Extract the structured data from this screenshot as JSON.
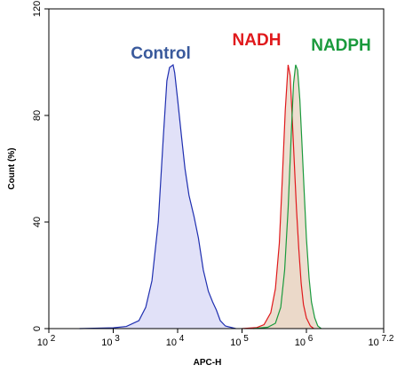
{
  "chart_data": {
    "type": "area",
    "xlabel": "APC-H",
    "ylabel": "Count (%)",
    "x_scale": "log",
    "xlim": [
      100,
      15848932
    ],
    "ylim": [
      0,
      120
    ],
    "x_ticks": [
      {
        "value": 100,
        "base": "10",
        "exp": "2"
      },
      {
        "value": 1000,
        "base": "10",
        "exp": "3"
      },
      {
        "value": 10000,
        "base": "10",
        "exp": "4"
      },
      {
        "value": 100000,
        "base": "10",
        "exp": "5"
      },
      {
        "value": 1000000,
        "base": "10",
        "exp": "6"
      },
      {
        "value": 15848932,
        "base": "10",
        "exp": "7.2"
      }
    ],
    "y_ticks": [
      0,
      40,
      80,
      120
    ],
    "grid": false,
    "series": [
      {
        "name": "Control",
        "color": "#1f2fb0",
        "fill": "#dcdcf7",
        "label_color": "#3a5a9c",
        "points": [
          [
            300,
            0
          ],
          [
            1000,
            0.3
          ],
          [
            1600,
            0.8
          ],
          [
            2500,
            3
          ],
          [
            3200,
            8
          ],
          [
            4000,
            18
          ],
          [
            5000,
            40
          ],
          [
            6000,
            72
          ],
          [
            6800,
            93
          ],
          [
            7500,
            98
          ],
          [
            8500,
            99
          ],
          [
            9000,
            96
          ],
          [
            10000,
            86
          ],
          [
            11500,
            72
          ],
          [
            13000,
            60
          ],
          [
            15000,
            50
          ],
          [
            18000,
            42
          ],
          [
            21000,
            34
          ],
          [
            25000,
            22
          ],
          [
            30000,
            14
          ],
          [
            35000,
            10
          ],
          [
            40000,
            7
          ],
          [
            46000,
            3
          ],
          [
            55000,
            1
          ],
          [
            80000,
            0
          ]
        ]
      },
      {
        "name": "NADH",
        "color": "#e0191c",
        "fill": "#ead8c8",
        "label_color": "#e0191c",
        "points": [
          [
            100000,
            0
          ],
          [
            170000,
            0.4
          ],
          [
            220000,
            1.5
          ],
          [
            280000,
            6
          ],
          [
            330000,
            15
          ],
          [
            380000,
            32
          ],
          [
            420000,
            55
          ],
          [
            470000,
            82
          ],
          [
            520000,
            99
          ],
          [
            560000,
            95
          ],
          [
            600000,
            80
          ],
          [
            650000,
            62
          ],
          [
            700000,
            45
          ],
          [
            760000,
            30
          ],
          [
            830000,
            17
          ],
          [
            900000,
            9
          ],
          [
            1000000,
            4
          ],
          [
            1150000,
            1
          ],
          [
            1300000,
            0
          ]
        ]
      },
      {
        "name": "NADPH",
        "color": "#1a9a3c",
        "fill": "#ead8c8",
        "label_color": "#1a9a3c",
        "points": [
          [
            150000,
            0
          ],
          [
            250000,
            0.5
          ],
          [
            330000,
            2
          ],
          [
            400000,
            8
          ],
          [
            460000,
            22
          ],
          [
            520000,
            45
          ],
          [
            580000,
            72
          ],
          [
            630000,
            92
          ],
          [
            680000,
            99
          ],
          [
            730000,
            97
          ],
          [
            790000,
            86
          ],
          [
            850000,
            70
          ],
          [
            920000,
            52
          ],
          [
            1000000,
            34
          ],
          [
            1100000,
            19
          ],
          [
            1200000,
            10
          ],
          [
            1350000,
            4
          ],
          [
            1500000,
            1
          ],
          [
            1700000,
            0
          ]
        ]
      }
    ]
  }
}
